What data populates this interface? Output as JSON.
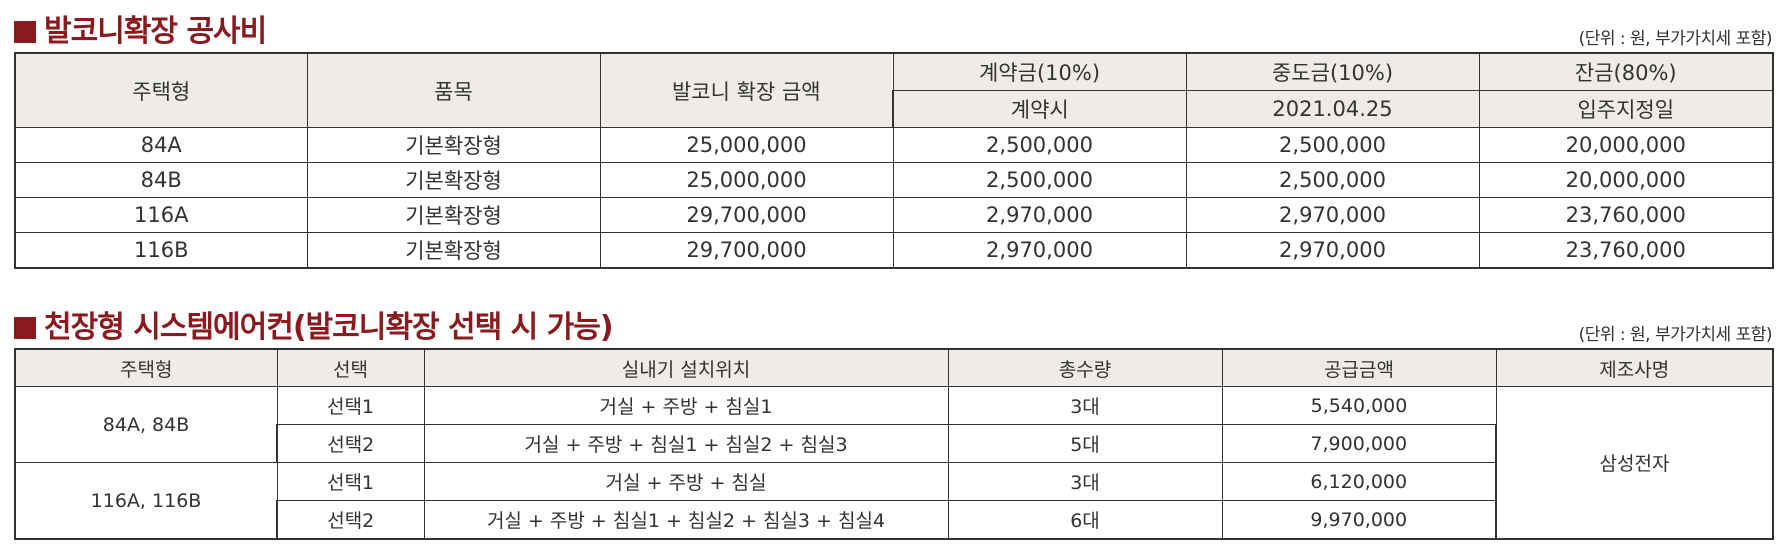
{
  "section1": {
    "title": "발코니확장 공사비",
    "unit_note": "(단위 : 원, 부가가치세 포함)",
    "headers": {
      "type": "주택형",
      "item": "품목",
      "amount": "발코니 확장 금액",
      "deposit": "계약금(10%)",
      "middle": "중도금(10%)",
      "balance": "잔금(80%)",
      "deposit_when": "계약시",
      "middle_when": "2021.04.25",
      "balance_when": "입주지정일"
    },
    "rows": [
      {
        "type": "84A",
        "item": "기본확장형",
        "amount": "25,000,000",
        "deposit": "2,500,000",
        "middle": "2,500,000",
        "balance": "20,000,000"
      },
      {
        "type": "84B",
        "item": "기본확장형",
        "amount": "25,000,000",
        "deposit": "2,500,000",
        "middle": "2,500,000",
        "balance": "20,000,000"
      },
      {
        "type": "116A",
        "item": "기본확장형",
        "amount": "29,700,000",
        "deposit": "2,970,000",
        "middle": "2,970,000",
        "balance": "23,760,000"
      },
      {
        "type": "116B",
        "item": "기본확장형",
        "amount": "29,700,000",
        "deposit": "2,970,000",
        "middle": "2,970,000",
        "balance": "23,760,000"
      }
    ]
  },
  "section2": {
    "title": "천장형 시스템에어컨(발코니확장 선택 시 가능)",
    "unit_note": "(단위 : 원, 부가가치세 포함)",
    "headers": {
      "type": "주택형",
      "option": "선택",
      "location": "실내기 설치위치",
      "qty": "총수량",
      "price": "공급금액",
      "maker": "제조사명"
    },
    "groups": [
      {
        "type": "84A, 84B",
        "rows": [
          {
            "option": "선택1",
            "location": "거실 + 주방 + 침실1",
            "qty": "3대",
            "price": "5,540,000"
          },
          {
            "option": "선택2",
            "location": "거실 + 주방 + 침실1 + 침실2 + 침실3",
            "qty": "5대",
            "price": "7,900,000"
          }
        ]
      },
      {
        "type": "116A, 116B",
        "rows": [
          {
            "option": "선택1",
            "location": "거실 + 주방 + 침실",
            "qty": "3대",
            "price": "6,120,000"
          },
          {
            "option": "선택2",
            "location": "거실 + 주방 + 침실1 + 침실2 + 침실3 + 침실4",
            "qty": "6대",
            "price": "9,970,000"
          }
        ]
      }
    ],
    "maker": "삼성전자"
  },
  "colors": {
    "title": "#8b1a1e",
    "header_bg": "#efebe6",
    "border": "#333333"
  }
}
